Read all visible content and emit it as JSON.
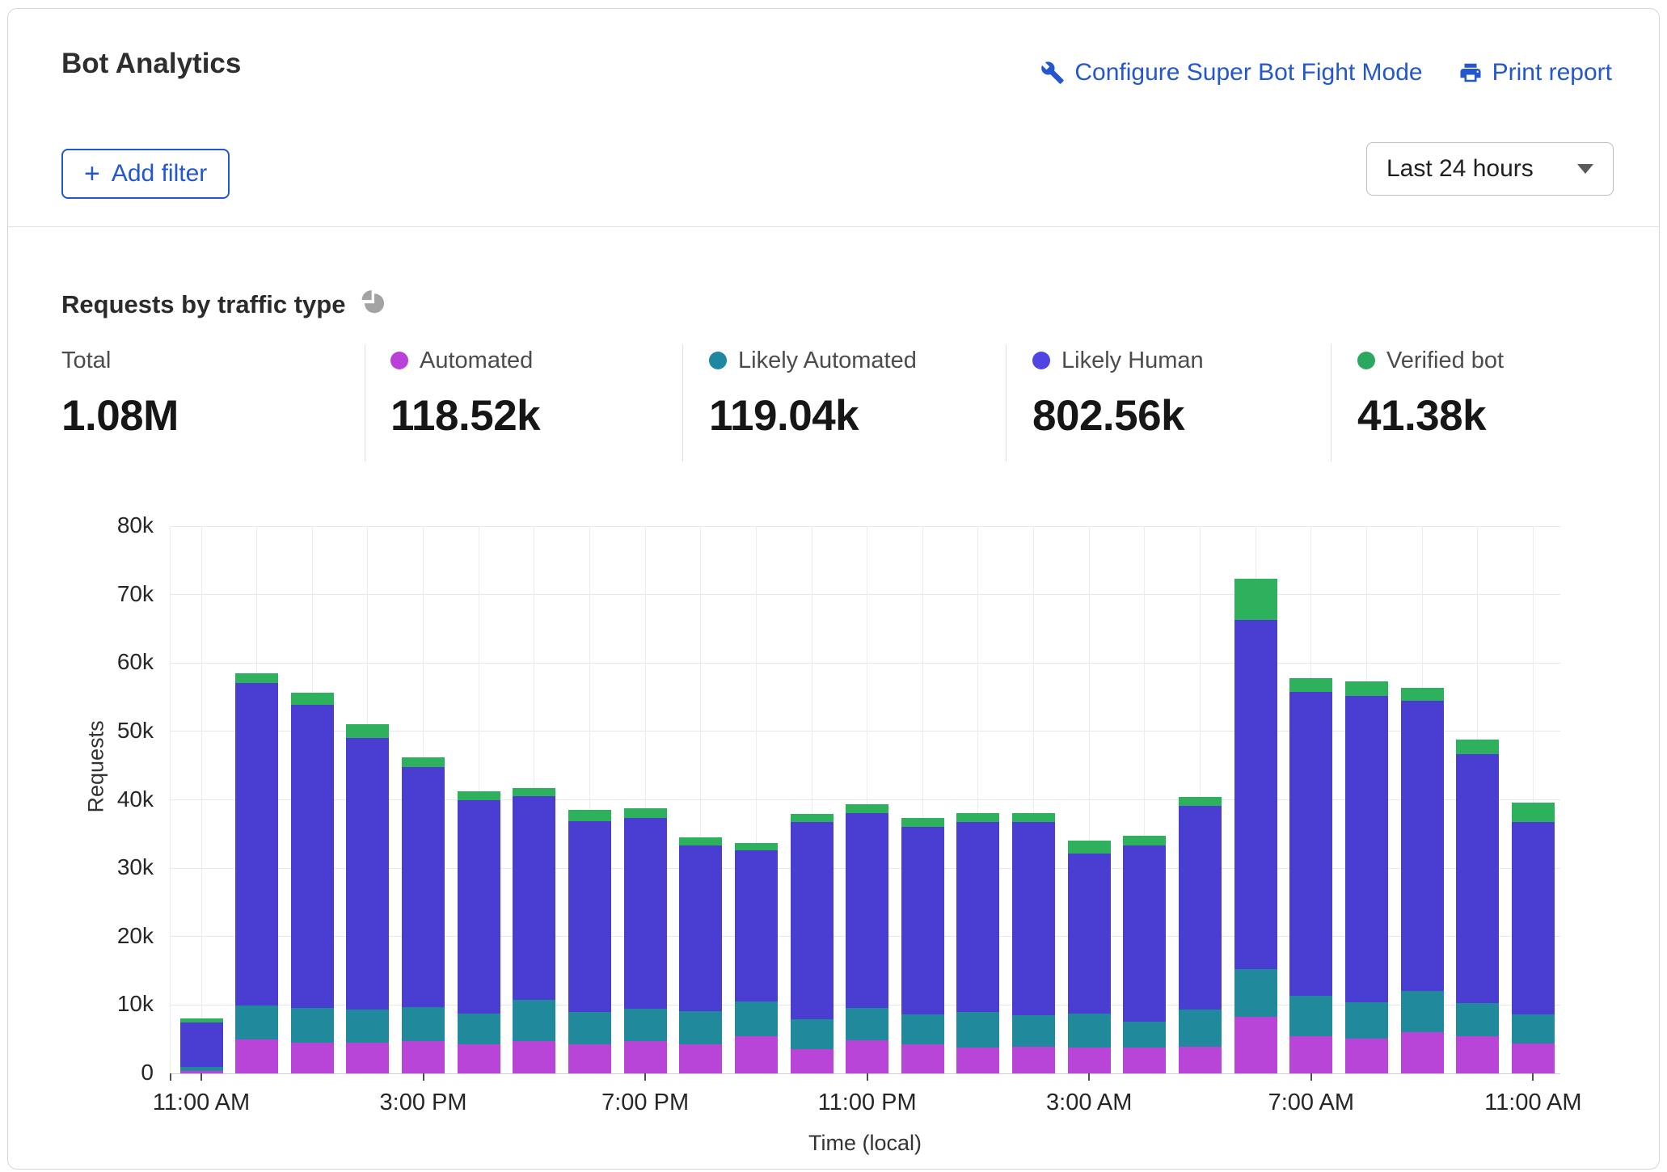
{
  "header": {
    "title": "Bot Analytics",
    "configure_link": "Configure Super Bot Fight Mode",
    "print_link": "Print report",
    "add_filter_label": "Add filter",
    "time_range_value": "Last 24 hours",
    "link_color": "#2456cf"
  },
  "panel": {
    "title": "Requests by traffic type"
  },
  "summary": {
    "stats": [
      {
        "label": "Total",
        "value": "1.08M",
        "dot_color": null
      },
      {
        "label": "Automated",
        "value": "118.52k",
        "dot_color": "#bb3fd9"
      },
      {
        "label": "Likely Automated",
        "value": "119.04k",
        "dot_color": "#1e87a2"
      },
      {
        "label": "Likely Human",
        "value": "802.56k",
        "dot_color": "#5044e4"
      },
      {
        "label": "Verified bot",
        "value": "41.38k",
        "dot_color": "#29a95f"
      }
    ]
  },
  "chart_data": {
    "type": "bar",
    "subtype": "stacked",
    "title": "Requests by traffic type",
    "xlabel": "Time (local)",
    "ylabel": "Requests",
    "unit": "thousands of requests",
    "ylim_k": [
      0,
      80
    ],
    "grid": true,
    "y_ticks": [
      {
        "k": 0,
        "label": "0"
      },
      {
        "k": 10,
        "label": "10k"
      },
      {
        "k": 20,
        "label": "20k"
      },
      {
        "k": 30,
        "label": "30k"
      },
      {
        "k": 40,
        "label": "40k"
      },
      {
        "k": 50,
        "label": "50k"
      },
      {
        "k": 60,
        "label": "60k"
      },
      {
        "k": 70,
        "label": "70k"
      },
      {
        "k": 80,
        "label": "80k"
      }
    ],
    "x_tick_labels": [
      {
        "index": 0,
        "text": "11:00 AM"
      },
      {
        "index": 4,
        "text": "3:00 PM"
      },
      {
        "index": 8,
        "text": "7:00 PM"
      },
      {
        "index": 12,
        "text": "11:00 PM"
      },
      {
        "index": 16,
        "text": "3:00 AM"
      },
      {
        "index": 20,
        "text": "7:00 AM"
      },
      {
        "index": 24,
        "text": "11:00 AM"
      }
    ],
    "series": [
      {
        "key": "automated",
        "name": "Automated",
        "color": "#b845d8"
      },
      {
        "key": "likely_automated",
        "name": "Likely Automated",
        "color": "#20899c"
      },
      {
        "key": "likely_human",
        "name": "Likely Human",
        "color": "#4a3ed2"
      },
      {
        "key": "verified_bot",
        "name": "Verified bot",
        "color": "#2eb15c"
      }
    ],
    "categories": [
      "11 AM",
      "12 PM",
      "1 PM",
      "2 PM",
      "3 PM",
      "4 PM",
      "5 PM",
      "6 PM",
      "7 PM",
      "8 PM",
      "9 PM",
      "10 PM",
      "11 PM",
      "12 AM",
      "1 AM",
      "2 AM",
      "3 AM",
      "4 AM",
      "5 AM",
      "6 AM",
      "7 AM",
      "8 AM",
      "9 AM",
      "10 AM",
      "11 AM"
    ],
    "values_k": {
      "automated": [
        0.4,
        5.0,
        4.5,
        4.5,
        4.7,
        4.3,
        4.7,
        4.3,
        4.7,
        4.3,
        5.4,
        3.6,
        4.8,
        4.2,
        3.8,
        3.9,
        3.8,
        3.8,
        3.9,
        8.3,
        5.4,
        5.1,
        6.0,
        5.4,
        4.4
      ],
      "likely_automated": [
        0.6,
        4.9,
        5.1,
        4.8,
        5.0,
        4.5,
        6.0,
        4.7,
        4.7,
        4.8,
        5.1,
        4.3,
        4.8,
        4.4,
        5.2,
        4.6,
        5.0,
        3.8,
        5.4,
        6.9,
        5.9,
        5.3,
        6.0,
        4.9,
        4.2
      ],
      "likely_human": [
        6.5,
        47.2,
        44.3,
        39.8,
        35.1,
        31.2,
        29.8,
        27.9,
        28.0,
        24.2,
        22.1,
        28.8,
        28.5,
        27.5,
        27.7,
        28.2,
        23.4,
        25.7,
        29.8,
        51.1,
        44.5,
        44.8,
        42.5,
        36.4,
        28.1
      ],
      "verified_bot": [
        0.5,
        1.4,
        1.8,
        1.9,
        1.4,
        1.2,
        1.2,
        1.6,
        1.4,
        1.2,
        1.1,
        1.2,
        1.2,
        1.2,
        1.3,
        1.3,
        1.8,
        1.5,
        1.3,
        6.0,
        2.0,
        2.1,
        1.9,
        2.1,
        2.9
      ]
    }
  }
}
